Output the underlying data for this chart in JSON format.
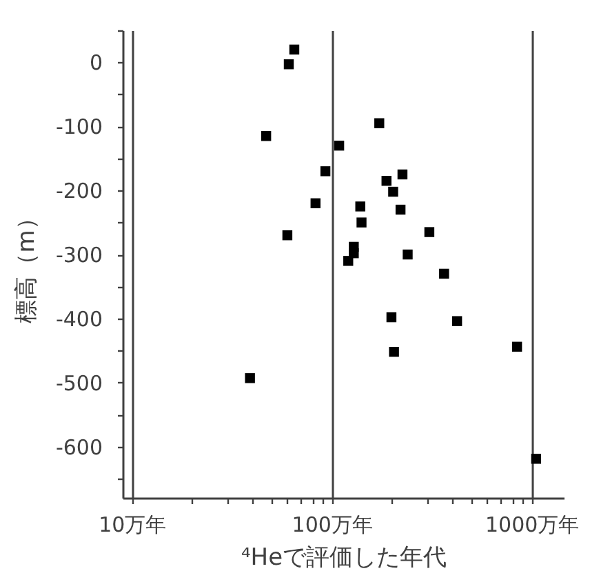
{
  "chart_data": {
    "type": "scatter",
    "xlabel": "⁴Heで評価した年代",
    "ylabel": "標高（m）",
    "x": [
      65,
      61,
      47,
      173,
      109,
      93,
      226,
      188,
      203,
      83,
      139,
      221,
      141,
      308,
      60,
      129,
      129,
      121,
      240,
      365,
      199,
      424,
      205,
      846,
      39,
      1054
    ],
    "values": [
      20,
      -3,
      -115,
      -95,
      -130,
      -170,
      -175,
      -185,
      -202,
      -220,
      -225,
      -230,
      -250,
      -265,
      -270,
      -288,
      -298,
      -310,
      -300,
      -330,
      -398,
      -404,
      -452,
      -444,
      -493,
      -619
    ],
    "color": "#000000",
    "marker": "square",
    "log": "x",
    "grid": "x",
    "xlim": [
      9,
      1450
    ],
    "ylim": [
      -680,
      50
    ],
    "xticks": [
      {
        "value": 10,
        "label": "10万年"
      },
      {
        "value": 20,
        "label": null
      },
      {
        "value": 30,
        "label": null
      },
      {
        "value": 40,
        "label": null
      },
      {
        "value": 50,
        "label": null
      },
      {
        "value": 60,
        "label": null
      },
      {
        "value": 70,
        "label": null
      },
      {
        "value": 80,
        "label": null
      },
      {
        "value": 90,
        "label": null
      },
      {
        "value": 100,
        "label": "100万年"
      },
      {
        "value": 200,
        "label": null
      },
      {
        "value": 300,
        "label": null
      },
      {
        "value": 400,
        "label": null
      },
      {
        "value": 500,
        "label": null
      },
      {
        "value": 600,
        "label": null
      },
      {
        "value": 700,
        "label": null
      },
      {
        "value": 800,
        "label": null
      },
      {
        "value": 900,
        "label": null
      },
      {
        "value": 1000,
        "label": "1000万年"
      }
    ],
    "yticks": [
      {
        "value": 50,
        "label": null
      },
      0,
      {
        "value": -50,
        "label": null
      },
      -100,
      {
        "value": -150,
        "label": null
      },
      -200,
      {
        "value": -250,
        "label": null
      },
      -300,
      {
        "value": -350,
        "label": null
      },
      -400,
      {
        "value": -450,
        "label": null
      },
      -500,
      {
        "value": -550,
        "label": null
      },
      -600,
      {
        "value": -650,
        "label": null
      }
    ]
  }
}
